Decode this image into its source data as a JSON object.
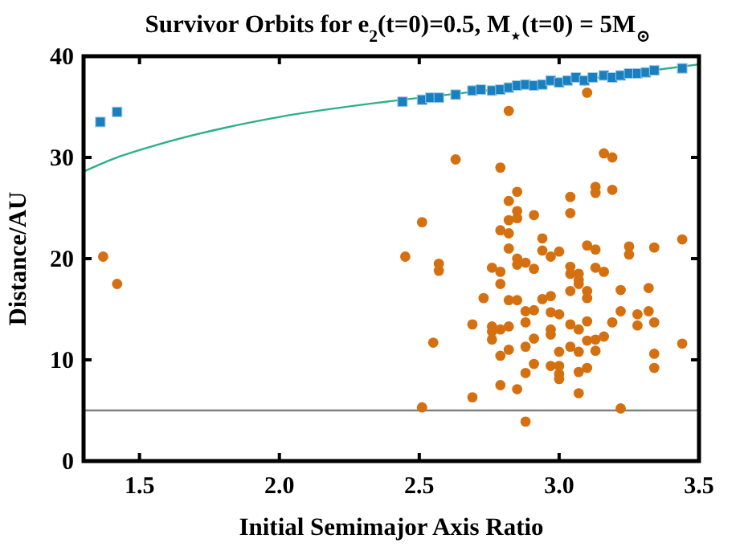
{
  "chart_data": {
    "type": "scatter",
    "title": "Survivor Orbits for e$_{2}$(t=0)=0.5, M$_{⋆}$(t=0) = 5M$_{⊙}$",
    "xlabel": "Initial Semimajor Axis Ratio",
    "ylabel": "Distance/AU",
    "xlim": [
      1.3,
      3.5
    ],
    "xticks": [
      {
        "value": 1.5,
        "label": "1.5"
      },
      {
        "value": 2,
        "label": "2.0"
      },
      {
        "value": 2.5,
        "label": "2.5"
      },
      {
        "value": 3,
        "label": "3.0"
      },
      {
        "value": 3.5,
        "label": "3.5"
      }
    ],
    "ylim": [
      0,
      40
    ],
    "yticks": [
      0,
      10,
      20,
      30,
      40
    ],
    "grid": false,
    "ref_lines": [
      {
        "axis": "y",
        "value": 5,
        "color": "#808080"
      }
    ],
    "series": [
      {
        "type": "line",
        "color": "#2bb08a",
        "marker": "none",
        "line_style": "solid",
        "x": [
          1.3,
          1.4,
          1.57,
          1.8,
          2.0,
          2.38,
          2.7,
          3.0,
          3.25,
          3.5
        ],
        "values": [
          28.6,
          29.8,
          31.3,
          32.9,
          34.0,
          35.5,
          36.5,
          37.4,
          38.3,
          39.2
        ]
      },
      {
        "color": "#1a7fbf",
        "marker": "square",
        "x": [
          1.36,
          1.42,
          2.44,
          2.51,
          2.54,
          2.57,
          2.63,
          2.69,
          2.72,
          2.76,
          2.79,
          2.82,
          2.85,
          2.88,
          2.91,
          2.94,
          2.97,
          3.0,
          3.03,
          3.06,
          3.09,
          3.12,
          3.16,
          3.19,
          3.22,
          3.25,
          3.28,
          3.31,
          3.34,
          3.44
        ],
        "values": [
          33.5,
          34.5,
          35.5,
          35.7,
          35.9,
          35.9,
          36.2,
          36.6,
          36.7,
          36.6,
          36.7,
          36.9,
          37.1,
          37.2,
          37.1,
          37.2,
          37.6,
          37.4,
          37.6,
          37.9,
          37.6,
          37.9,
          38.1,
          37.9,
          38.1,
          38.3,
          38.3,
          38.4,
          38.6,
          38.8
        ]
      },
      {
        "color": "#d4700f",
        "marker": "circle",
        "x": [
          1.37,
          1.42,
          3.1,
          2.82,
          2.63,
          2.79,
          3.16,
          3.19,
          2.85,
          2.82,
          3.13,
          3.13,
          3.19,
          3.04,
          3.04,
          2.85,
          2.85,
          2.82,
          2.91,
          2.51,
          2.79,
          2.82,
          2.94,
          2.82,
          2.94,
          3.0,
          2.97,
          3.1,
          3.13,
          3.25,
          3.25,
          3.34,
          3.44,
          2.45,
          2.57,
          2.85,
          2.88,
          2.85,
          2.76,
          2.79,
          2.57,
          2.91,
          3.04,
          3.13,
          3.16,
          3.04,
          3.07,
          3.07,
          3.07,
          2.79,
          2.73,
          2.82,
          2.85,
          2.94,
          2.97,
          3.04,
          3.1,
          3.1,
          3.22,
          3.32,
          2.88,
          2.91,
          2.97,
          3.0,
          3.22,
          3.28,
          3.32,
          2.69,
          2.76,
          2.76,
          2.79,
          2.82,
          2.88,
          2.97,
          2.97,
          3.04,
          3.07,
          3.1,
          3.19,
          3.28,
          3.34,
          2.76,
          2.55,
          2.88,
          2.91,
          2.82,
          2.79,
          3.0,
          3.04,
          3.07,
          3.1,
          3.13,
          3.13,
          3.16,
          3.44,
          3.34,
          3.34,
          2.91,
          2.97,
          3.0,
          3.0,
          3.0,
          2.88,
          3.07,
          3.1,
          2.79,
          2.85,
          2.69,
          3.07,
          2.51,
          3.22,
          2.88
        ],
        "values": [
          20.2,
          17.5,
          36.4,
          34.6,
          29.8,
          29.0,
          30.4,
          30.0,
          26.6,
          25.7,
          27.1,
          26.5,
          26.8,
          26.1,
          24.5,
          24.7,
          24.0,
          23.8,
          24.3,
          23.6,
          22.8,
          22.5,
          22.0,
          21.0,
          20.8,
          20.7,
          20.2,
          21.3,
          20.9,
          21.2,
          20.4,
          21.1,
          21.9,
          20.2,
          19.5,
          20.0,
          19.6,
          19.4,
          19.1,
          18.7,
          18.8,
          19.0,
          19.2,
          19.1,
          18.7,
          18.5,
          18.5,
          17.9,
          17.5,
          17.5,
          16.1,
          15.9,
          15.9,
          16.0,
          16.3,
          16.8,
          16.8,
          16.1,
          16.9,
          17.1,
          14.8,
          14.9,
          14.7,
          14.5,
          14.8,
          14.5,
          14.8,
          13.5,
          13.3,
          12.8,
          13.0,
          13.3,
          13.7,
          13.0,
          12.5,
          13.5,
          13.0,
          13.8,
          13.7,
          13.4,
          13.7,
          12.0,
          11.7,
          11.3,
          12.1,
          11.0,
          10.4,
          10.8,
          11.3,
          10.8,
          11.9,
          12.0,
          10.9,
          12.3,
          11.6,
          10.6,
          9.2,
          9.6,
          9.4,
          9.4,
          8.6,
          8.1,
          8.7,
          8.8,
          9.2,
          7.5,
          7.1,
          6.3,
          6.7,
          5.3,
          5.2,
          3.9
        ]
      }
    ]
  }
}
